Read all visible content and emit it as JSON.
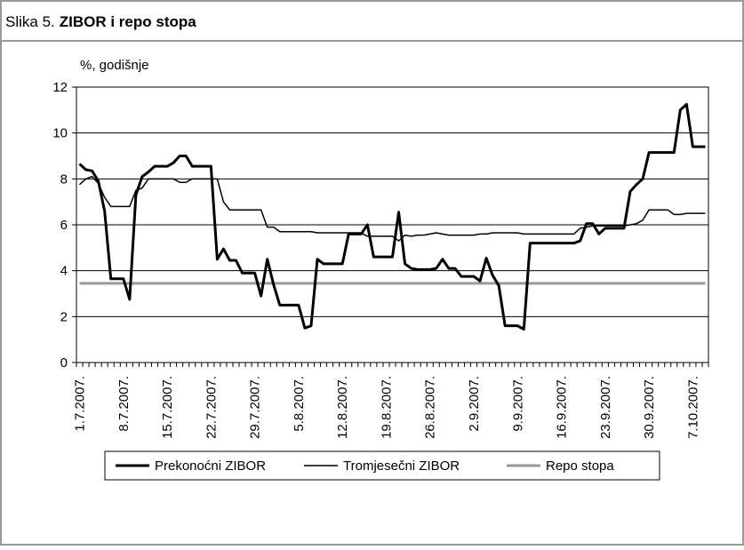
{
  "chart_data": {
    "type": "line",
    "figure_label": "Slika 5.",
    "title": "ZIBOR i repo stopa",
    "y_axis_label": "%, godišnje",
    "categories": [
      "1.7.2007.",
      null,
      null,
      null,
      null,
      null,
      null,
      "8.7.2007.",
      null,
      null,
      null,
      null,
      null,
      null,
      "15.7.2007.",
      null,
      null,
      null,
      null,
      null,
      null,
      "22.7.2007.",
      null,
      null,
      null,
      null,
      null,
      null,
      "29.7.2007.",
      null,
      null,
      null,
      null,
      null,
      null,
      "5.8.2007.",
      null,
      null,
      null,
      null,
      null,
      null,
      "12.8.2007.",
      null,
      null,
      null,
      null,
      null,
      null,
      "19.8.2007.",
      null,
      null,
      null,
      null,
      null,
      null,
      "26.8.2007.",
      null,
      null,
      null,
      null,
      null,
      null,
      "2.9.2007.",
      null,
      null,
      null,
      null,
      null,
      null,
      "9.9.2007.",
      null,
      null,
      null,
      null,
      null,
      null,
      "16.9.2007.",
      null,
      null,
      null,
      null,
      null,
      null,
      "23.9.2007.",
      null,
      null,
      null,
      null,
      null,
      null,
      "30.9.2007.",
      null,
      null,
      null,
      null,
      null,
      null,
      "7.10.2007.",
      null,
      null
    ],
    "series": [
      {
        "name": "Prekonoćni ZIBOR",
        "color": "#000000",
        "width": 3,
        "values": [
          8.65,
          8.4,
          8.35,
          7.9,
          6.6,
          3.65,
          3.65,
          3.65,
          2.75,
          7.3,
          8.1,
          8.3,
          8.55,
          8.55,
          8.55,
          8.7,
          9.0,
          9.0,
          8.55,
          8.55,
          8.55,
          8.55,
          4.5,
          4.95,
          4.45,
          4.45,
          3.9,
          3.9,
          3.9,
          2.9,
          4.5,
          3.4,
          2.5,
          2.5,
          2.5,
          2.5,
          1.5,
          1.6,
          4.5,
          4.3,
          4.3,
          4.3,
          4.3,
          5.6,
          5.6,
          5.6,
          6.0,
          4.6,
          4.6,
          4.6,
          4.6,
          6.55,
          4.3,
          4.1,
          4.05,
          4.05,
          4.05,
          4.1,
          4.5,
          4.1,
          4.1,
          3.75,
          3.75,
          3.75,
          3.55,
          4.55,
          3.8,
          3.35,
          1.6,
          1.6,
          1.6,
          1.45,
          5.2,
          5.2,
          5.2,
          5.2,
          5.2,
          5.2,
          5.2,
          5.2,
          5.3,
          6.05,
          6.05,
          5.6,
          5.85,
          5.85,
          5.85,
          5.85,
          7.45,
          7.75,
          8.0,
          9.15,
          9.15,
          9.15,
          9.15,
          9.15,
          11.0,
          11.25,
          9.4,
          9.4,
          9.4
        ]
      },
      {
        "name": "Tromjesečni ZIBOR",
        "color": "#000000",
        "width": 1.5,
        "values": [
          7.75,
          8.0,
          8.1,
          7.8,
          7.2,
          6.8,
          6.8,
          6.8,
          6.8,
          7.5,
          7.6,
          8.0,
          8.0,
          8.0,
          8.0,
          8.0,
          7.85,
          7.85,
          8.0,
          8.0,
          8.0,
          8.0,
          8.0,
          7.0,
          6.65,
          6.65,
          6.65,
          6.65,
          6.65,
          6.65,
          5.9,
          5.9,
          5.7,
          5.7,
          5.7,
          5.7,
          5.7,
          5.7,
          5.65,
          5.65,
          5.65,
          5.65,
          5.65,
          5.65,
          5.65,
          5.65,
          5.5,
          5.5,
          5.5,
          5.5,
          5.5,
          5.3,
          5.55,
          5.5,
          5.55,
          5.55,
          5.6,
          5.65,
          5.6,
          5.55,
          5.55,
          5.55,
          5.55,
          5.55,
          5.6,
          5.6,
          5.65,
          5.65,
          5.65,
          5.65,
          5.65,
          5.6,
          5.6,
          5.6,
          5.6,
          5.6,
          5.6,
          5.6,
          5.6,
          5.6,
          5.85,
          5.9,
          5.95,
          5.95,
          5.95,
          5.95,
          5.95,
          5.95,
          6.0,
          6.05,
          6.2,
          6.65,
          6.65,
          6.65,
          6.65,
          6.45,
          6.45,
          6.5,
          6.5,
          6.5,
          6.5
        ]
      },
      {
        "name": "Repo stopa",
        "color": "#999999",
        "width": 3,
        "values": [
          3.45,
          3.45,
          3.45,
          3.45,
          3.45,
          3.45,
          3.45,
          3.45,
          3.45,
          3.45,
          3.45,
          3.45,
          3.45,
          3.45,
          3.45,
          3.45,
          3.45,
          3.45,
          3.45,
          3.45,
          3.45,
          3.45,
          3.45,
          3.45,
          3.45,
          3.45,
          3.45,
          3.45,
          3.45,
          3.45,
          3.45,
          3.45,
          3.45,
          3.45,
          3.45,
          3.45,
          3.45,
          3.45,
          3.45,
          3.45,
          3.45,
          3.45,
          3.45,
          3.45,
          3.45,
          3.45,
          3.45,
          3.45,
          3.45,
          3.45,
          3.45,
          3.45,
          3.45,
          3.45,
          3.45,
          3.45,
          3.45,
          3.45,
          3.45,
          3.45,
          3.45,
          3.45,
          3.45,
          3.45,
          3.45,
          3.45,
          3.45,
          3.45,
          3.45,
          3.45,
          3.45,
          3.45,
          3.45,
          3.45,
          3.45,
          3.45,
          3.45,
          3.45,
          3.45,
          3.45,
          3.45,
          3.45,
          3.45,
          3.45,
          3.45,
          3.45,
          3.45,
          3.45,
          3.45,
          3.45,
          3.45,
          3.45,
          3.45,
          3.45,
          3.45,
          3.45,
          3.45,
          3.45,
          3.45,
          3.45,
          3.45
        ]
      }
    ],
    "ylim": [
      0,
      12
    ],
    "yticks": [
      0,
      2,
      4,
      6,
      8,
      10,
      12
    ],
    "grid": true,
    "legend": "bottom"
  }
}
